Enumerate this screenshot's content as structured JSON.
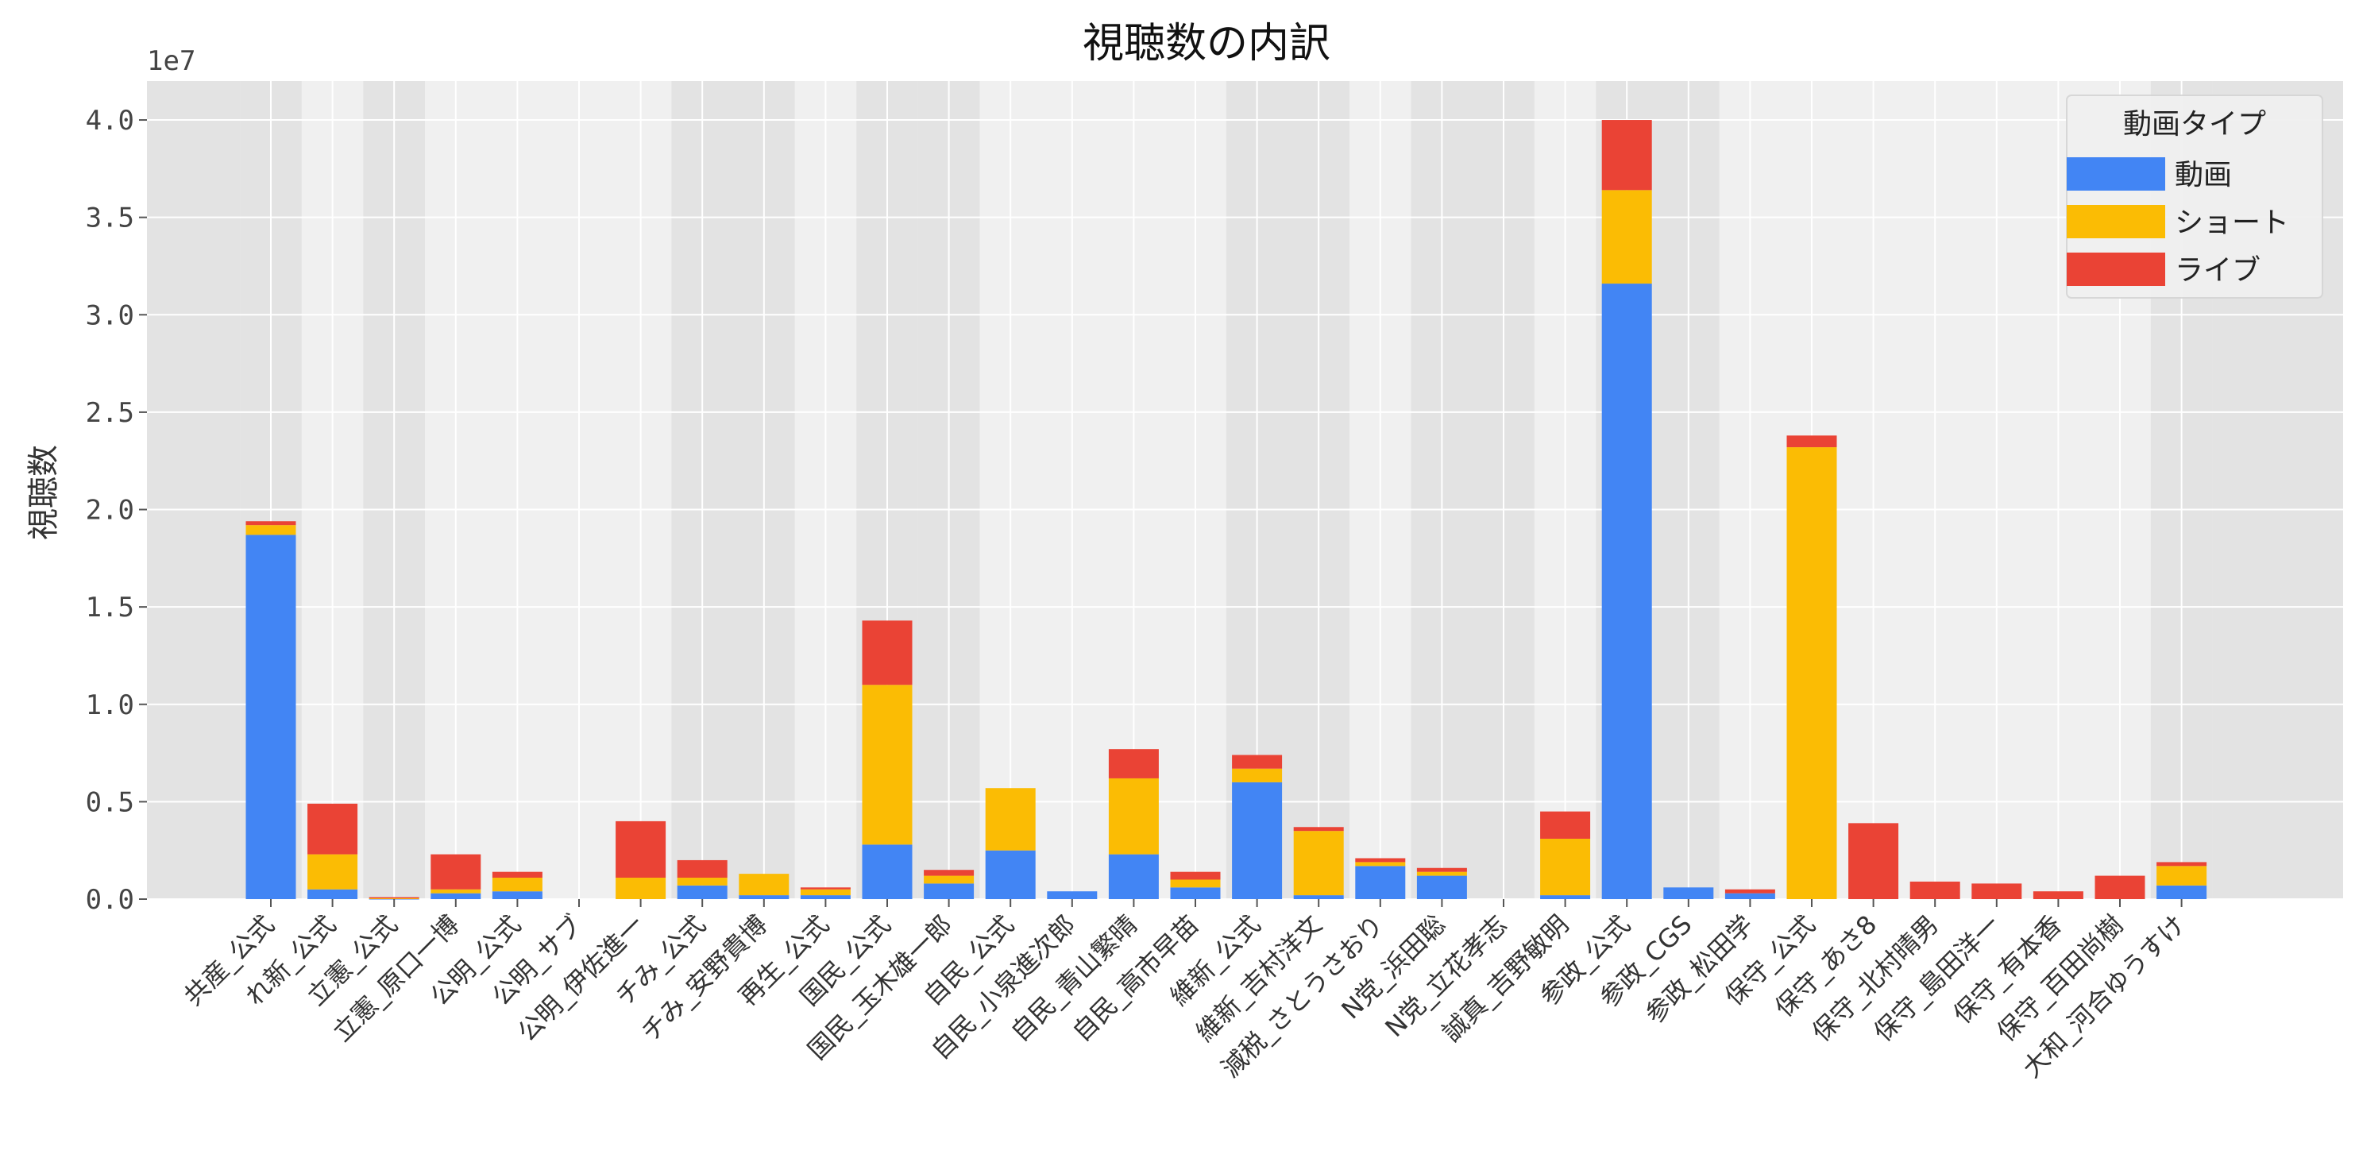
{
  "chart_data": {
    "type": "bar",
    "stacked": true,
    "title": "視聴数の内訳",
    "ylabel": "視聴数",
    "xlabel": "",
    "y_offset_label": "1e7",
    "ylim": [
      0,
      4.2
    ],
    "yticks": [
      "0.0",
      "0.5",
      "1.0",
      "1.5",
      "2.0",
      "2.5",
      "3.0",
      "3.5",
      "4.0"
    ],
    "grid": true,
    "legend": {
      "title": "動画タイプ",
      "placement": "top-right"
    },
    "categories": [
      "共産_公式",
      "れ新_公式",
      "立憲_公式",
      "立憲_原口一博",
      "公明_公式",
      "公明_サブ",
      "公明_伊佐進一",
      "チみ_公式",
      "チみ_安野貴博",
      "再生_公式",
      "国民_公式",
      "国民_玉木雄一郎",
      "自民_公式",
      "自民_小泉進次郎",
      "自民_青山繁晴",
      "自民_高市早苗",
      "維新_公式",
      "維新_吉村洋文",
      "減税_さとうさおり",
      "N党_浜田聡",
      "N党_立花孝志",
      "誠真_吉野敏明",
      "参政_公式",
      "参政_CGS",
      "参政_松田学",
      "保守_公式",
      "保守_あさ8",
      "保守_北村晴男",
      "保守_島田洋一",
      "保守_有本香",
      "保守_百田尚樹",
      "大和_河合ゆうすけ"
    ],
    "band_shading": [
      1,
      0,
      1,
      0,
      0,
      0,
      0,
      1,
      1,
      0,
      1,
      1,
      0,
      0,
      0,
      0,
      1,
      1,
      0,
      1,
      1,
      0,
      1,
      1,
      0,
      0,
      0,
      0,
      0,
      0,
      0,
      1
    ],
    "series": [
      {
        "name": "動画",
        "color": "#4285f4",
        "values": [
          1.87,
          0.05,
          0.002,
          0.03,
          0.04,
          0,
          0,
          0.07,
          0.02,
          0.02,
          0.28,
          0.08,
          0.25,
          0.04,
          0.23,
          0.06,
          0.6,
          0.02,
          0.17,
          0.12,
          0,
          0.02,
          3.16,
          0.06,
          0.03,
          0,
          0,
          0,
          0,
          0,
          0,
          0.07
        ]
      },
      {
        "name": "ショート",
        "color": "#fbbc04",
        "values": [
          0.05,
          0.18,
          0.002,
          0.02,
          0.07,
          0,
          0.11,
          0.04,
          0.11,
          0.03,
          0.82,
          0.04,
          0.32,
          0,
          0.39,
          0.04,
          0.07,
          0.33,
          0.02,
          0.02,
          0,
          0.29,
          0.48,
          0,
          0,
          2.32,
          0,
          0,
          0,
          0,
          0,
          0.1
        ]
      },
      {
        "name": "ライブ",
        "color": "#ea4335",
        "values": [
          0.02,
          0.26,
          0.006,
          0.18,
          0.03,
          0,
          0.29,
          0.09,
          0,
          0.01,
          0.33,
          0.03,
          0,
          0,
          0.15,
          0.04,
          0.07,
          0.02,
          0.02,
          0.02,
          0,
          0.14,
          0.36,
          0,
          0.02,
          0.06,
          0.39,
          0.09,
          0.08,
          0.04,
          0.12,
          0.02
        ]
      }
    ]
  }
}
